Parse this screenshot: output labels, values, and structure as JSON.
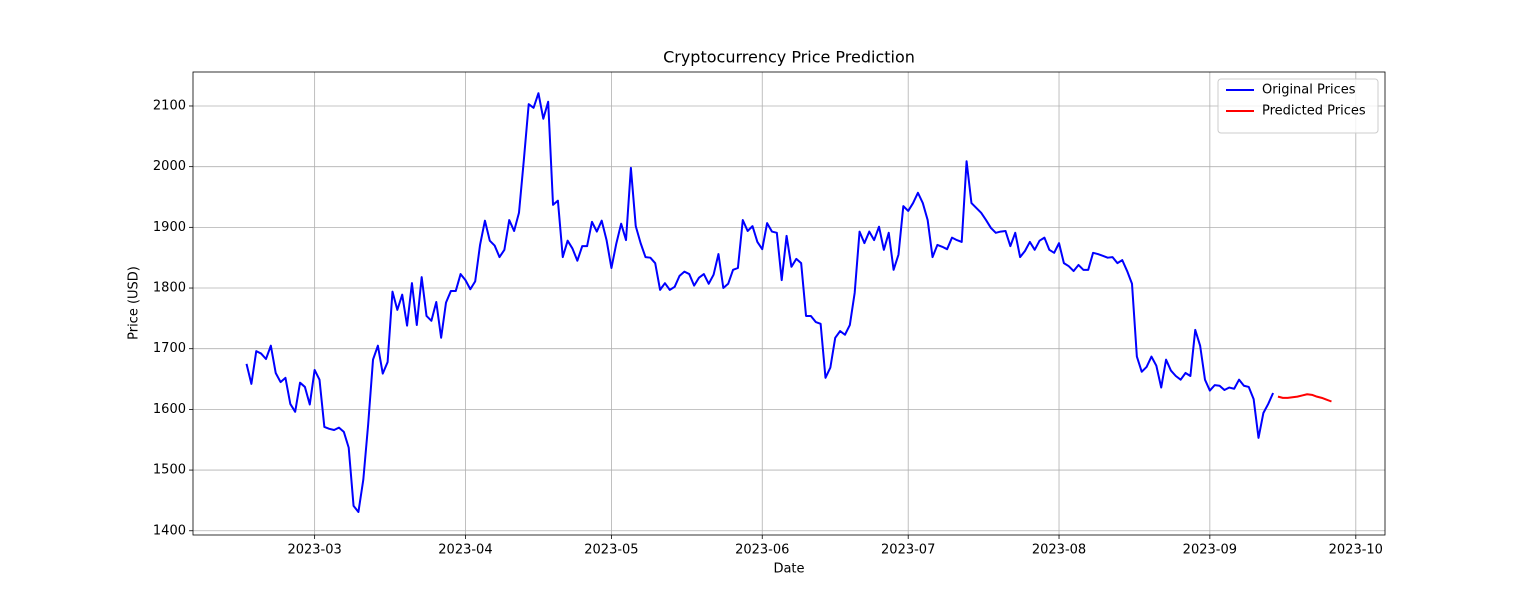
{
  "chart_data": {
    "type": "line",
    "title": "Cryptocurrency Price Prediction",
    "x_label": "Date",
    "y_label": "Price (USD)",
    "grid": true,
    "legend": "upper right",
    "xlim": [
      "2023-02-04",
      "2023-10-07"
    ],
    "ylim": [
      1393,
      2156
    ],
    "xticks": [
      {
        "value": "2023-03-01",
        "label": "2023-03"
      },
      {
        "value": "2023-04-01",
        "label": "2023-04"
      },
      {
        "value": "2023-05-01",
        "label": "2023-05"
      },
      {
        "value": "2023-06-01",
        "label": "2023-06"
      },
      {
        "value": "2023-07-01",
        "label": "2023-07"
      },
      {
        "value": "2023-08-01",
        "label": "2023-08"
      },
      {
        "value": "2023-09-01",
        "label": "2023-09"
      },
      {
        "value": "2023-10-01",
        "label": "2023-10"
      }
    ],
    "yticks": [
      1400,
      1500,
      1600,
      1700,
      1800,
      1900,
      2000,
      2100
    ],
    "series": [
      {
        "name": "Original Prices",
        "color": "#0000ff",
        "x": [
          "2023-02-15",
          "2023-02-16",
          "2023-02-17",
          "2023-02-18",
          "2023-02-19",
          "2023-02-20",
          "2023-02-21",
          "2023-02-22",
          "2023-02-23",
          "2023-02-24",
          "2023-02-25",
          "2023-02-26",
          "2023-02-27",
          "2023-02-28",
          "2023-03-01",
          "2023-03-02",
          "2023-03-03",
          "2023-03-04",
          "2023-03-05",
          "2023-03-06",
          "2023-03-07",
          "2023-03-08",
          "2023-03-09",
          "2023-03-10",
          "2023-03-11",
          "2023-03-12",
          "2023-03-13",
          "2023-03-14",
          "2023-03-15",
          "2023-03-16",
          "2023-03-17",
          "2023-03-18",
          "2023-03-19",
          "2023-03-20",
          "2023-03-21",
          "2023-03-22",
          "2023-03-23",
          "2023-03-24",
          "2023-03-25",
          "2023-03-26",
          "2023-03-27",
          "2023-03-28",
          "2023-03-29",
          "2023-03-30",
          "2023-03-31",
          "2023-04-01",
          "2023-04-02",
          "2023-04-03",
          "2023-04-04",
          "2023-04-05",
          "2023-04-06",
          "2023-04-07",
          "2023-04-08",
          "2023-04-09",
          "2023-04-10",
          "2023-04-11",
          "2023-04-12",
          "2023-04-13",
          "2023-04-14",
          "2023-04-15",
          "2023-04-16",
          "2023-04-17",
          "2023-04-18",
          "2023-04-19",
          "2023-04-20",
          "2023-04-21",
          "2023-04-22",
          "2023-04-23",
          "2023-04-24",
          "2023-04-25",
          "2023-04-26",
          "2023-04-27",
          "2023-04-28",
          "2023-04-29",
          "2023-04-30",
          "2023-05-01",
          "2023-05-02",
          "2023-05-03",
          "2023-05-04",
          "2023-05-05",
          "2023-05-06",
          "2023-05-07",
          "2023-05-08",
          "2023-05-09",
          "2023-05-10",
          "2023-05-11",
          "2023-05-12",
          "2023-05-13",
          "2023-05-14",
          "2023-05-15",
          "2023-05-16",
          "2023-05-17",
          "2023-05-18",
          "2023-05-19",
          "2023-05-20",
          "2023-05-21",
          "2023-05-22",
          "2023-05-23",
          "2023-05-24",
          "2023-05-25",
          "2023-05-26",
          "2023-05-27",
          "2023-05-28",
          "2023-05-29",
          "2023-05-30",
          "2023-05-31",
          "2023-06-01",
          "2023-06-02",
          "2023-06-03",
          "2023-06-04",
          "2023-06-05",
          "2023-06-06",
          "2023-06-07",
          "2023-06-08",
          "2023-06-09",
          "2023-06-10",
          "2023-06-11",
          "2023-06-12",
          "2023-06-13",
          "2023-06-14",
          "2023-06-15",
          "2023-06-16",
          "2023-06-17",
          "2023-06-18",
          "2023-06-19",
          "2023-06-20",
          "2023-06-21",
          "2023-06-22",
          "2023-06-23",
          "2023-06-24",
          "2023-06-25",
          "2023-06-26",
          "2023-06-27",
          "2023-06-28",
          "2023-06-29",
          "2023-06-30",
          "2023-07-01",
          "2023-07-02",
          "2023-07-03",
          "2023-07-04",
          "2023-07-05",
          "2023-07-06",
          "2023-07-07",
          "2023-07-08",
          "2023-07-09",
          "2023-07-10",
          "2023-07-11",
          "2023-07-12",
          "2023-07-13",
          "2023-07-14",
          "2023-07-15",
          "2023-07-16",
          "2023-07-17",
          "2023-07-18",
          "2023-07-19",
          "2023-07-20",
          "2023-07-21",
          "2023-07-22",
          "2023-07-23",
          "2023-07-24",
          "2023-07-25",
          "2023-07-26",
          "2023-07-27",
          "2023-07-28",
          "2023-07-29",
          "2023-07-30",
          "2023-07-31",
          "2023-08-01",
          "2023-08-02",
          "2023-08-03",
          "2023-08-04",
          "2023-08-05",
          "2023-08-06",
          "2023-08-07",
          "2023-08-08",
          "2023-08-09",
          "2023-08-10",
          "2023-08-11",
          "2023-08-12",
          "2023-08-13",
          "2023-08-14",
          "2023-08-15",
          "2023-08-16",
          "2023-08-17",
          "2023-08-18",
          "2023-08-19",
          "2023-08-20",
          "2023-08-21",
          "2023-08-22",
          "2023-08-23",
          "2023-08-24",
          "2023-08-25",
          "2023-08-26",
          "2023-08-27",
          "2023-08-28",
          "2023-08-29",
          "2023-08-30",
          "2023-08-31",
          "2023-09-01",
          "2023-09-02",
          "2023-09-03",
          "2023-09-04",
          "2023-09-05",
          "2023-09-06",
          "2023-09-07",
          "2023-09-08",
          "2023-09-09",
          "2023-09-10",
          "2023-09-11",
          "2023-09-12",
          "2023-09-13",
          "2023-09-14"
        ],
        "values": [
          1675,
          1642,
          1696,
          1692,
          1683,
          1705,
          1660,
          1645,
          1652,
          1609,
          1596,
          1644,
          1637,
          1608,
          1665,
          1649,
          1571,
          1568,
          1566,
          1570,
          1563,
          1537,
          1441,
          1431,
          1484,
          1575,
          1682,
          1705,
          1659,
          1678,
          1794,
          1764,
          1789,
          1738,
          1808,
          1739,
          1818,
          1754,
          1746,
          1777,
          1718,
          1776,
          1795,
          1795,
          1823,
          1813,
          1798,
          1811,
          1871,
          1911,
          1878,
          1870,
          1851,
          1863,
          1912,
          1894,
          1924,
          2011,
          2103,
          2097,
          2121,
          2079,
          2107,
          1937,
          1944,
          1851,
          1878,
          1865,
          1845,
          1869,
          1869,
          1909,
          1893,
          1911,
          1879,
          1833,
          1873,
          1906,
          1879,
          1998,
          1902,
          1874,
          1851,
          1850,
          1841,
          1797,
          1808,
          1797,
          1802,
          1820,
          1827,
          1823,
          1804,
          1817,
          1823,
          1807,
          1822,
          1856,
          1800,
          1807,
          1830,
          1833,
          1912,
          1894,
          1902,
          1876,
          1864,
          1907,
          1893,
          1891,
          1813,
          1886,
          1835,
          1848,
          1841,
          1754,
          1754,
          1744,
          1741,
          1652,
          1669,
          1718,
          1729,
          1723,
          1739,
          1792,
          1893,
          1874,
          1893,
          1879,
          1901,
          1863,
          1891,
          1830,
          1855,
          1935,
          1927,
          1940,
          1957,
          1940,
          1912,
          1851,
          1871,
          1868,
          1864,
          1883,
          1879,
          1876,
          2009,
          1940,
          1932,
          1924,
          1912,
          1899,
          1891,
          1893,
          1894,
          1869,
          1891,
          1851,
          1861,
          1876,
          1863,
          1878,
          1883,
          1863,
          1858,
          1874,
          1841,
          1836,
          1828,
          1838,
          1830,
          1830,
          1858,
          1856,
          1853,
          1850,
          1851,
          1841,
          1846,
          1828,
          1807,
          1687,
          1662,
          1670,
          1687,
          1672,
          1636,
          1682,
          1664,
          1655,
          1649,
          1660,
          1655,
          1731,
          1705,
          1649,
          1631,
          1640,
          1639,
          1632,
          1636,
          1634,
          1649,
          1639,
          1637,
          1617,
          1553,
          1594,
          1609,
          1627
        ]
      },
      {
        "name": "Predicted Prices",
        "color": "#ff0000",
        "x": [
          "2023-09-15",
          "2023-09-16",
          "2023-09-17",
          "2023-09-18",
          "2023-09-19",
          "2023-09-20",
          "2023-09-21",
          "2023-09-22",
          "2023-09-23",
          "2023-09-24",
          "2023-09-25",
          "2023-09-26"
        ],
        "values": [
          1621,
          1619,
          1619,
          1620,
          1621,
          1623,
          1625,
          1624,
          1621,
          1619,
          1616,
          1613
        ]
      }
    ]
  }
}
